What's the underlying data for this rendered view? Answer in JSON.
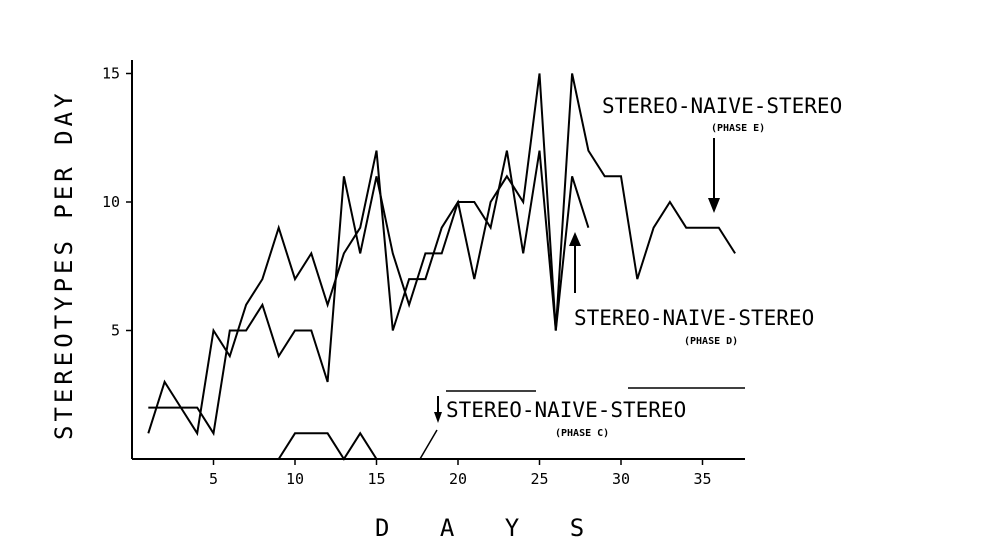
{
  "chart_data": {
    "type": "line",
    "title": "",
    "xlabel": "D A Y S",
    "ylabel": "STEREOTYPES PER DAY",
    "xlim": [
      0,
      38
    ],
    "ylim": [
      0,
      15.5
    ],
    "xticks": [
      5,
      10,
      15,
      20,
      25,
      30,
      35
    ],
    "yticks": [
      5,
      10,
      15
    ],
    "grid": false,
    "series": [
      {
        "x": [
          1,
          2,
          3,
          4,
          5,
          6,
          7,
          8,
          9,
          10,
          11,
          12,
          13,
          14,
          15,
          16,
          17,
          18,
          19,
          20,
          21,
          22,
          23,
          24,
          25,
          26,
          27,
          28
        ],
        "y": [
          2,
          2,
          2,
          2,
          1,
          5,
          5,
          6,
          4,
          5,
          5,
          3,
          11,
          8,
          11,
          8,
          6,
          8,
          8,
          10,
          10,
          9,
          12,
          8,
          12,
          5,
          11,
          9
        ]
      },
      {
        "x": [
          1,
          2,
          3,
          4,
          5,
          6,
          7,
          8,
          9,
          10,
          11,
          12,
          13,
          14,
          15,
          16,
          17,
          18,
          19,
          20,
          21,
          22,
          23,
          24,
          25,
          26,
          27,
          28,
          29,
          30,
          31,
          32,
          33,
          34,
          35,
          36,
          37
        ],
        "y": [
          1,
          3,
          2,
          1,
          5,
          4,
          6,
          7,
          9,
          7,
          8,
          6,
          8,
          9,
          12,
          5,
          7,
          7,
          9,
          10,
          7,
          10,
          11,
          10,
          15,
          5,
          15,
          12,
          11,
          11,
          7,
          9,
          10,
          9,
          9,
          9,
          8
        ]
      },
      {
        "x": [
          9,
          10,
          11,
          12,
          13,
          14,
          15
        ],
        "y": [
          0,
          1,
          1,
          1,
          0,
          1,
          0
        ]
      }
    ],
    "annotations": [
      {
        "text": "STEREO-NAIVE-STEREO",
        "sub": "(PHASE E)"
      },
      {
        "text": "STEREO-NAIVE-STEREO",
        "sub": "(PHASE D)"
      },
      {
        "text": "STEREO-NAIVE-STEREO",
        "sub": "(PHASE C)"
      }
    ]
  }
}
